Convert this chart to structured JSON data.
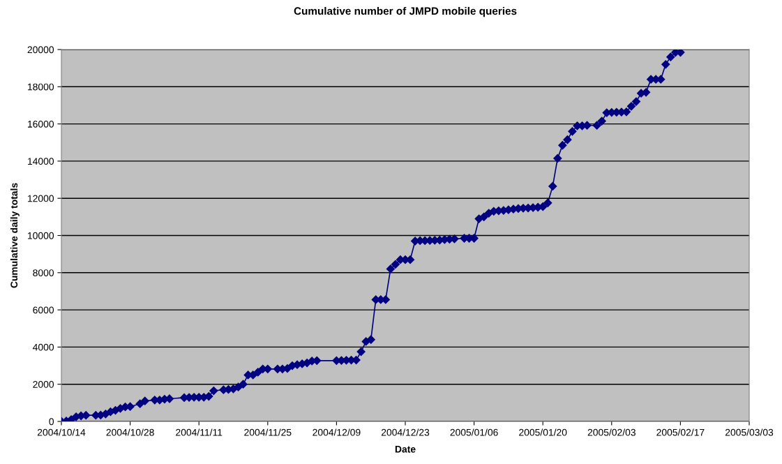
{
  "chart_data": {
    "type": "line",
    "title": "Cumulative number of JMPD mobile queries",
    "xlabel": "Date",
    "ylabel": "Cumulative daily totals",
    "x": [
      "2004-10-14",
      "2004-10-15",
      "2004-10-16",
      "2004-10-17",
      "2004-10-18",
      "2004-10-19",
      "2004-10-21",
      "2004-10-22",
      "2004-10-23",
      "2004-10-24",
      "2004-10-25",
      "2004-10-26",
      "2004-10-27",
      "2004-10-28",
      "2004-10-30",
      "2004-10-31",
      "2004-11-02",
      "2004-11-03",
      "2004-11-04",
      "2004-11-05",
      "2004-11-08",
      "2004-11-09",
      "2004-11-10",
      "2004-11-11",
      "2004-11-12",
      "2004-11-13",
      "2004-11-14",
      "2004-11-16",
      "2004-11-17",
      "2004-11-18",
      "2004-11-19",
      "2004-11-20",
      "2004-11-21",
      "2004-11-22",
      "2004-11-23",
      "2004-11-24",
      "2004-11-25",
      "2004-11-27",
      "2004-11-28",
      "2004-11-29",
      "2004-11-30",
      "2004-12-01",
      "2004-12-02",
      "2004-12-03",
      "2004-12-04",
      "2004-12-05",
      "2004-12-09",
      "2004-12-10",
      "2004-12-11",
      "2004-12-12",
      "2004-12-13",
      "2004-12-14",
      "2004-12-15",
      "2004-12-16",
      "2004-12-17",
      "2004-12-18",
      "2004-12-19",
      "2004-12-20",
      "2004-12-21",
      "2004-12-22",
      "2004-12-23",
      "2004-12-24",
      "2004-12-25",
      "2004-12-26",
      "2004-12-27",
      "2004-12-28",
      "2004-12-29",
      "2004-12-30",
      "2004-12-31",
      "2005-01-01",
      "2005-01-02",
      "2005-01-04",
      "2005-01-05",
      "2005-01-06",
      "2005-01-07",
      "2005-01-08",
      "2005-01-09",
      "2005-01-10",
      "2005-01-11",
      "2005-01-12",
      "2005-01-13",
      "2005-01-14",
      "2005-01-15",
      "2005-01-16",
      "2005-01-17",
      "2005-01-18",
      "2005-01-19",
      "2005-01-20",
      "2005-01-21",
      "2005-01-22",
      "2005-01-23",
      "2005-01-24",
      "2005-01-25",
      "2005-01-26",
      "2005-01-27",
      "2005-01-28",
      "2005-01-29",
      "2005-01-31",
      "2005-02-01",
      "2005-02-02",
      "2005-02-03",
      "2005-02-04",
      "2005-02-05",
      "2005-02-06",
      "2005-02-07",
      "2005-02-08",
      "2005-02-09",
      "2005-02-10",
      "2005-02-11",
      "2005-02-12",
      "2005-02-13",
      "2005-02-14",
      "2005-02-15",
      "2005-02-16",
      "2005-02-17"
    ],
    "series": [
      {
        "color": "#000080",
        "values": [
          0,
          20,
          100,
          250,
          300,
          330,
          330,
          340,
          400,
          520,
          600,
          700,
          780,
          800,
          950,
          1100,
          1150,
          1150,
          1200,
          1220,
          1280,
          1290,
          1300,
          1300,
          1300,
          1350,
          1650,
          1700,
          1720,
          1750,
          1850,
          2000,
          2500,
          2500,
          2650,
          2820,
          2820,
          2820,
          2820,
          2850,
          3000,
          3050,
          3100,
          3150,
          3250,
          3270,
          3270,
          3280,
          3290,
          3300,
          3300,
          3750,
          4300,
          4400,
          6550,
          6550,
          6550,
          8200,
          8450,
          8700,
          8700,
          8700,
          9700,
          9720,
          9720,
          9730,
          9740,
          9750,
          9780,
          9800,
          9820,
          9850,
          9850,
          9850,
          10900,
          11000,
          11200,
          11300,
          11330,
          11350,
          11380,
          11420,
          11450,
          11470,
          11480,
          11500,
          11520,
          11550,
          11750,
          12650,
          14150,
          14850,
          15150,
          15600,
          15900,
          15900,
          15920,
          15920,
          16150,
          16600,
          16620,
          16630,
          16640,
          16650,
          16950,
          17200,
          17650,
          17700,
          18400,
          18400,
          18400,
          19200,
          19600,
          19850,
          19850
        ]
      }
    ],
    "xlim": [
      "2004-10-14",
      "2005-03-03"
    ],
    "xticks": [
      {
        "value": "2004-10-14",
        "label": "2004/10/14"
      },
      {
        "value": "2004-10-28",
        "label": "2004/10/28"
      },
      {
        "value": "2004-11-11",
        "label": "2004/11/11"
      },
      {
        "value": "2004-11-25",
        "label": "2004/11/25"
      },
      {
        "value": "2004-12-09",
        "label": "2004/12/09"
      },
      {
        "value": "2004-12-23",
        "label": "2004/12/23"
      },
      {
        "value": "2005-01-06",
        "label": "2005/01/06"
      },
      {
        "value": "2005-01-20",
        "label": "2005/01/20"
      },
      {
        "value": "2005-02-03",
        "label": "2005/02/03"
      },
      {
        "value": "2005-02-17",
        "label": "2005/02/17"
      },
      {
        "value": "2005-03-03",
        "label": "2005/03/03"
      }
    ],
    "ylim": [
      0,
      20000
    ],
    "yticks": [
      0,
      2000,
      4000,
      6000,
      8000,
      10000,
      12000,
      14000,
      16000,
      18000,
      20000
    ],
    "grid": "y",
    "marker": "diamond",
    "line_style": "solid",
    "legend": false
  }
}
